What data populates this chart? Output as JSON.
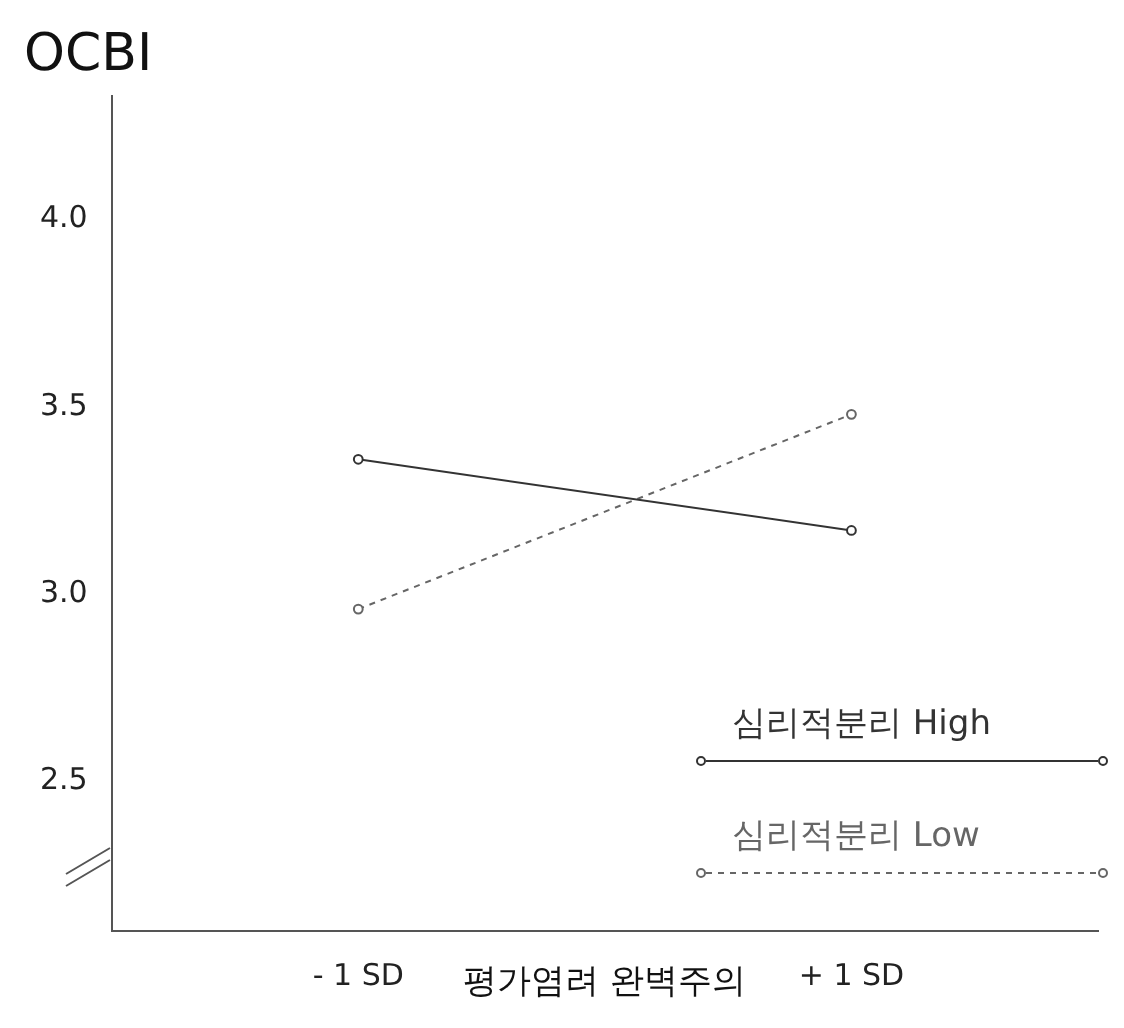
{
  "chart_data": {
    "type": "line",
    "ylabel": "OCBI",
    "xlabel": "평가염려 완벽주의",
    "categories": [
      "- 1 SD",
      "+ 1 SD"
    ],
    "series": [
      {
        "name": "심리적분리 High",
        "color": "#333333",
        "values": [
          3.36,
          3.17
        ],
        "line_style": "solid"
      },
      {
        "name": "심리적분리 Low",
        "color": "#666666",
        "values": [
          2.96,
          3.48
        ],
        "line_style": "dashed"
      }
    ],
    "ylim": [
      2.1,
      4.33
    ],
    "yticks": [
      2.5,
      {
        "value": 3,
        "label": "3.0"
      },
      3.5,
      {
        "value": 4,
        "label": "4.0"
      }
    ],
    "grid": false,
    "legend": "bottom right",
    "marker": "circle"
  }
}
